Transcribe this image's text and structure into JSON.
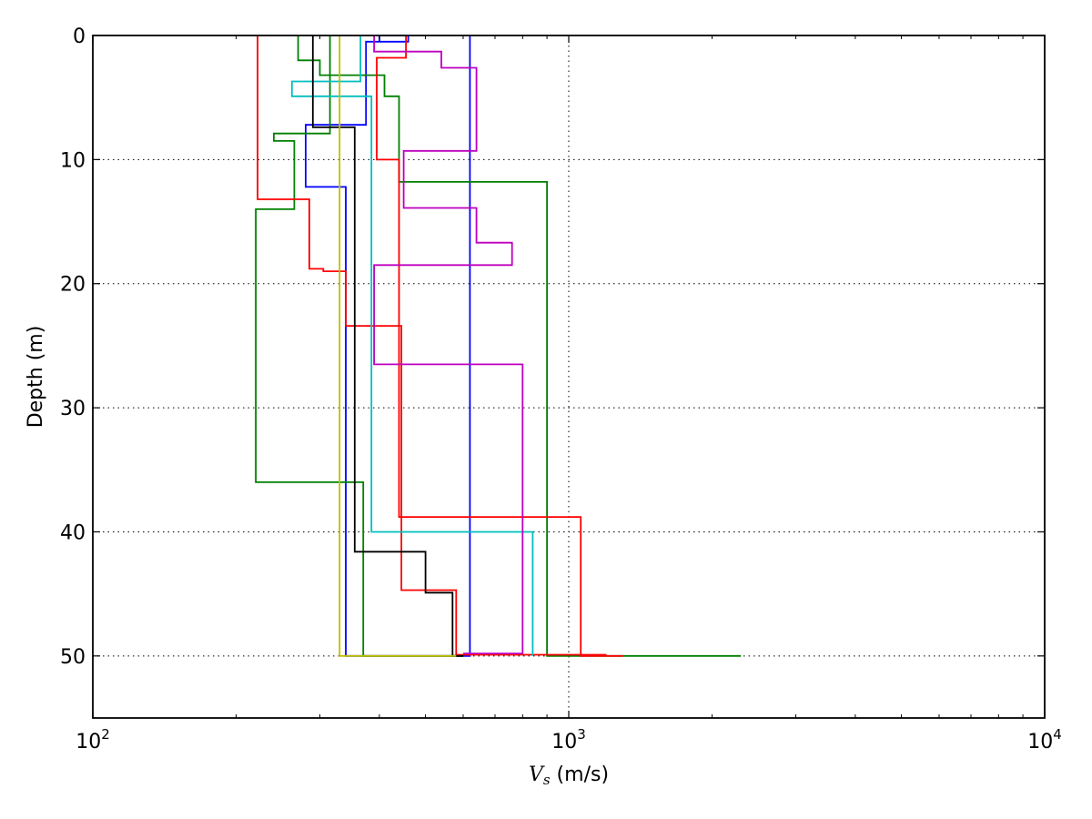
{
  "chart_data": {
    "type": "line",
    "title": "",
    "xlabel": {
      "symbol": "V",
      "subscript": "s",
      "unit": " (m/s)"
    },
    "ylabel": "Depth (m)",
    "x_scale": "log",
    "xlim": [
      100,
      10000
    ],
    "ylim": [
      55,
      0
    ],
    "x_ticks": [
      {
        "value": 100,
        "base": "10",
        "exp": "2"
      },
      {
        "value": 1000,
        "base": "10",
        "exp": "3"
      },
      {
        "value": 10000,
        "base": "10",
        "exp": "4"
      }
    ],
    "y_ticks": [
      0,
      10,
      20,
      30,
      40,
      50
    ],
    "grid": true,
    "series": [
      {
        "color": "#0000ff",
        "points": [
          [
            375,
            0.5
          ],
          [
            400,
            0.5
          ],
          [
            400,
            0
          ],
          [
            460,
            0
          ],
          [
            460,
            0.5
          ],
          [
            375,
            0.5
          ],
          [
            375,
            7.2
          ],
          [
            280,
            7.2
          ],
          [
            280,
            12.2
          ],
          [
            340,
            12.2
          ],
          [
            340,
            50
          ],
          [
            620,
            50
          ],
          [
            620,
            0
          ]
        ]
      },
      {
        "color": "#008000",
        "points": [
          [
            270,
            0
          ],
          [
            270,
            2
          ],
          [
            300,
            2
          ],
          [
            300,
            3.2
          ],
          [
            410,
            3.2
          ],
          [
            410,
            4.9
          ],
          [
            440,
            4.9
          ],
          [
            440,
            11.8
          ],
          [
            900,
            11.8
          ],
          [
            900,
            50
          ],
          [
            2300,
            50
          ]
        ]
      },
      {
        "color": "#008000",
        "points": [
          [
            315,
            0
          ],
          [
            315,
            7.9
          ],
          [
            240,
            7.9
          ],
          [
            240,
            8.5
          ],
          [
            265,
            8.5
          ],
          [
            265,
            14
          ],
          [
            220,
            14
          ],
          [
            220,
            36
          ],
          [
            370,
            36
          ],
          [
            370,
            50
          ],
          [
            600,
            50
          ]
        ]
      },
      {
        "color": "#ff0000",
        "points": [
          [
            222,
            0
          ],
          [
            222,
            13.2
          ],
          [
            285,
            13.2
          ],
          [
            285,
            18.8
          ],
          [
            305,
            18.8
          ],
          [
            305,
            19
          ],
          [
            340,
            19
          ],
          [
            340,
            23.4
          ],
          [
            445,
            23.4
          ],
          [
            445,
            44.7
          ],
          [
            580,
            44.7
          ],
          [
            580,
            49.9
          ],
          [
            1200,
            49.9
          ]
        ]
      },
      {
        "color": "#ff0000",
        "points": [
          [
            455,
            0
          ],
          [
            455,
            1.8
          ],
          [
            395,
            1.8
          ],
          [
            395,
            10
          ],
          [
            440,
            10
          ],
          [
            440,
            38.8
          ],
          [
            1060,
            38.8
          ],
          [
            1060,
            50
          ],
          [
            1300,
            50
          ]
        ]
      },
      {
        "color": "#00bfbf",
        "points": [
          [
            365,
            0
          ],
          [
            365,
            3.7
          ],
          [
            262,
            3.7
          ],
          [
            262,
            4.9
          ],
          [
            385,
            4.9
          ],
          [
            385,
            40
          ],
          [
            840,
            40
          ],
          [
            840,
            50
          ]
        ]
      },
      {
        "color": "#bf00bf",
        "points": [
          [
            390,
            0
          ],
          [
            390,
            1.3
          ],
          [
            540,
            1.3
          ],
          [
            540,
            2.6
          ],
          [
            640,
            2.6
          ],
          [
            640,
            9.3
          ],
          [
            450,
            9.3
          ],
          [
            450,
            13.9
          ],
          [
            640,
            13.9
          ],
          [
            640,
            16.7
          ],
          [
            760,
            16.7
          ],
          [
            760,
            18.5
          ],
          [
            390,
            18.5
          ],
          [
            390,
            26.5
          ],
          [
            800,
            26.5
          ],
          [
            800,
            49.8
          ],
          [
            600,
            49.8
          ]
        ]
      },
      {
        "color": "#000000",
        "points": [
          [
            290,
            0
          ],
          [
            290,
            7.4
          ],
          [
            355,
            7.4
          ],
          [
            355,
            41.6
          ],
          [
            500,
            41.6
          ],
          [
            500,
            44.9
          ],
          [
            570,
            44.9
          ],
          [
            570,
            50
          ],
          [
            600,
            50
          ]
        ]
      },
      {
        "color": "#bfbf00",
        "points": [
          [
            330,
            0
          ],
          [
            330,
            50
          ],
          [
            580,
            50
          ]
        ]
      }
    ]
  }
}
